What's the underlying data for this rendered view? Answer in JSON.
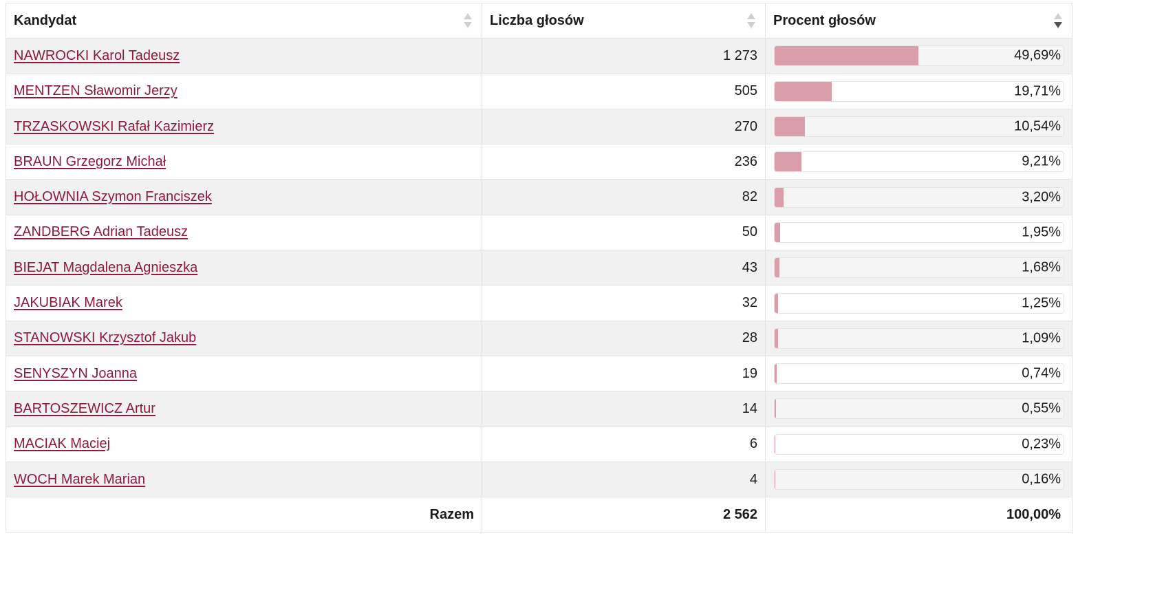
{
  "headers": {
    "candidate": "Kandydat",
    "votes": "Liczba głosów",
    "percent": "Procent głosów"
  },
  "sort": {
    "column": "percent",
    "direction": "descending"
  },
  "colors": {
    "link": "#8e1a3c",
    "bar": "#d99ea9"
  },
  "rows": [
    {
      "name": "NAWROCKI Karol Tadeusz",
      "votes": "1 273",
      "percent_label": "49,69%",
      "percent": 49.69
    },
    {
      "name": "MENTZEN Sławomir Jerzy",
      "votes": "505",
      "percent_label": "19,71%",
      "percent": 19.71
    },
    {
      "name": "TRZASKOWSKI Rafał Kazimierz",
      "votes": "270",
      "percent_label": "10,54%",
      "percent": 10.54
    },
    {
      "name": "BRAUN Grzegorz Michał",
      "votes": "236",
      "percent_label": "9,21%",
      "percent": 9.21
    },
    {
      "name": "HOŁOWNIA Szymon Franciszek",
      "votes": "82",
      "percent_label": "3,20%",
      "percent": 3.2
    },
    {
      "name": "ZANDBERG Adrian Tadeusz",
      "votes": "50",
      "percent_label": "1,95%",
      "percent": 1.95
    },
    {
      "name": "BIEJAT Magdalena Agnieszka",
      "votes": "43",
      "percent_label": "1,68%",
      "percent": 1.68
    },
    {
      "name": "JAKUBIAK Marek",
      "votes": "32",
      "percent_label": "1,25%",
      "percent": 1.25
    },
    {
      "name": "STANOWSKI Krzysztof Jakub",
      "votes": "28",
      "percent_label": "1,09%",
      "percent": 1.09
    },
    {
      "name": "SENYSZYN Joanna",
      "votes": "19",
      "percent_label": "0,74%",
      "percent": 0.74
    },
    {
      "name": "BARTOSZEWICZ Artur",
      "votes": "14",
      "percent_label": "0,55%",
      "percent": 0.55
    },
    {
      "name": "MACIAK Maciej",
      "votes": "6",
      "percent_label": "0,23%",
      "percent": 0.23
    },
    {
      "name": "WOCH Marek Marian",
      "votes": "4",
      "percent_label": "0,16%",
      "percent": 0.16
    }
  ],
  "footer": {
    "label": "Razem",
    "votes": "2 562",
    "percent": "100,00%"
  }
}
